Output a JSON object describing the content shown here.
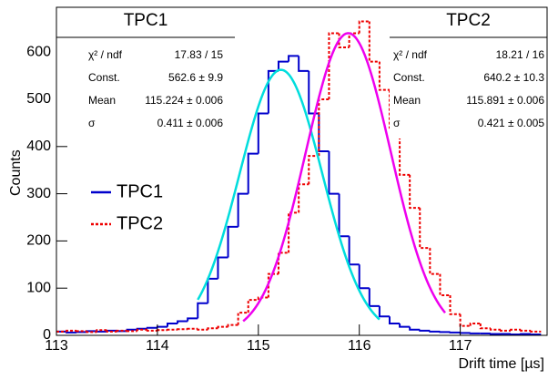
{
  "chart_data": {
    "type": "histogram",
    "xlabel": "Drift time [µs]",
    "ylabel": "Counts",
    "xlim": [
      113,
      117.86
    ],
    "ylim": [
      0,
      695
    ],
    "xticks": [
      113,
      114,
      115,
      116,
      117
    ],
    "yticks": [
      0,
      100,
      200,
      300,
      400,
      500,
      600
    ],
    "bins": [
      113.0,
      113.1,
      113.2,
      113.3,
      113.4,
      113.5,
      113.6,
      113.7,
      113.8,
      113.9,
      114.0,
      114.1,
      114.2,
      114.3,
      114.4,
      114.5,
      114.6,
      114.7,
      114.8,
      114.9,
      115.0,
      115.1,
      115.2,
      115.3,
      115.4,
      115.5,
      115.6,
      115.7,
      115.8,
      115.9,
      116.0,
      116.1,
      116.2,
      116.3,
      116.4,
      116.5,
      116.6,
      116.7,
      116.8,
      116.9,
      117.0,
      117.1,
      117.2,
      117.3,
      117.4,
      117.5,
      117.6,
      117.7,
      117.8
    ],
    "series": [
      {
        "name": "TPC1",
        "color": "#0000cc",
        "line_style": "solid",
        "values": [
          8,
          6,
          7,
          9,
          8,
          10,
          9,
          12,
          14,
          16,
          18,
          25,
          30,
          36,
          68,
          120,
          165,
          230,
          300,
          385,
          470,
          560,
          580,
          592,
          560,
          470,
          390,
          300,
          210,
          150,
          100,
          62,
          40,
          25,
          18,
          12,
          10,
          8,
          7,
          6,
          5,
          4,
          4,
          3,
          3,
          2,
          3,
          2
        ]
      },
      {
        "name": "TPC2",
        "color": "#ee0000",
        "line_style": "dashed",
        "values": [
          8,
          10,
          9,
          7,
          11,
          8,
          10,
          9,
          12,
          10,
          11,
          12,
          13,
          14,
          12,
          15,
          18,
          22,
          48,
          75,
          80,
          130,
          175,
          260,
          320,
          380,
          500,
          640,
          610,
          640,
          665,
          580,
          520,
          440,
          340,
          270,
          185,
          130,
          85,
          45,
          20,
          25,
          15,
          12,
          10,
          12,
          10,
          8
        ]
      }
    ],
    "fits": [
      {
        "title": "TPC1",
        "color": "#00dddd",
        "range": [
          114.4,
          116.2
        ],
        "const": 562.6,
        "mean": 115.224,
        "sigma": 0.411,
        "rows": [
          {
            "label": "χ² / ndf",
            "text": "17.83 / 15"
          },
          {
            "label": "Const.",
            "text": "562.6 ± 9.9"
          },
          {
            "label": "Mean",
            "text": "115.224 ± 0.006"
          },
          {
            "label": "σ",
            "text": "0.411 ± 0.006"
          }
        ]
      },
      {
        "title": "TPC2",
        "color": "#ee00ee",
        "range": [
          114.85,
          116.85
        ],
        "const": 640.2,
        "mean": 115.891,
        "sigma": 0.421,
        "rows": [
          {
            "label": "χ² / ndf",
            "text": "18.21 / 16"
          },
          {
            "label": "Const.",
            "text": "640.2 ± 10.3"
          },
          {
            "label": "Mean",
            "text": "115.891 ± 0.006"
          },
          {
            "label": "σ",
            "text": "0.421 ± 0.005"
          }
        ]
      }
    ],
    "legend_position": "left"
  }
}
